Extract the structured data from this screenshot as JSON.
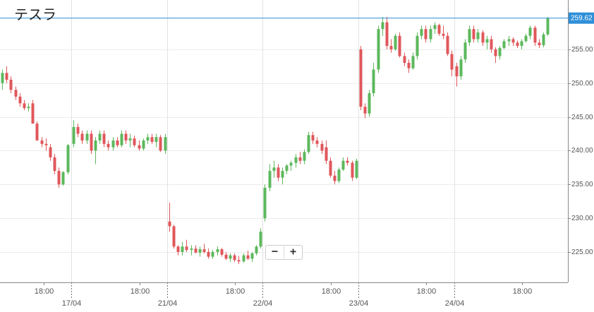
{
  "chart_data": {
    "type": "candlestick",
    "title": "テスラ",
    "x": [
      0.5,
      1.5,
      2.5,
      3.5,
      4.5,
      5.5,
      6.5,
      7.5,
      8.5,
      9.5,
      10.5,
      11.5,
      12.5,
      13.5,
      14.5,
      15.5,
      16.9,
      17.9,
      18.9,
      19.9,
      20.9,
      21.9,
      22.9,
      23.9,
      24.9,
      25.9,
      26.9,
      27.9,
      28.9,
      29.9,
      30.9,
      31.9,
      32.9,
      33.9,
      34.9,
      35.9,
      36.9,
      37.9,
      38.9,
      39.9,
      40.9,
      41.9,
      42.9,
      43.9,
      44.9,
      45.9,
      46.9,
      47.9,
      48.9,
      49.9,
      50.9,
      51.9,
      52.9,
      53.9,
      54.9,
      55.9,
      56.9,
      57.9,
      58.9,
      59.9,
      60.9,
      61.9,
      62.9,
      63.9,
      64.9,
      65.9,
      66.9,
      67.9,
      68.9,
      69.9,
      70.9,
      71.9,
      72.9,
      73.9,
      74.9,
      75.9,
      76.9,
      77.9,
      78.9,
      79.9,
      80.9,
      81.9,
      82.9,
      83.9,
      84.9,
      85.9,
      86.9,
      87.9,
      88.9,
      89.9,
      90.9,
      91.9,
      92.9,
      93.9,
      94.9,
      95.9,
      96.9,
      97.9,
      98.9,
      99.9,
      100.9,
      101.9,
      102.9,
      103.9,
      104.9,
      105.9,
      106.9,
      107.9,
      108.9,
      109.9,
      110.9,
      111.9,
      112.9,
      113.9,
      114.9,
      115.9,
      116.9,
      117.9,
      118.9,
      119.9,
      120.9,
      121.9,
      122.9,
      123.9,
      124.9,
      125.9
    ],
    "open": [
      250,
      251.5,
      250.5,
      249,
      248,
      247,
      246.3,
      247,
      244,
      241.5,
      241,
      240.5,
      239,
      237,
      235,
      236.8,
      241,
      243.5,
      242.5,
      241.5,
      242.5,
      240,
      241.5,
      242.5,
      241,
      240.5,
      241.5,
      240.8,
      242.5,
      241.5,
      241.8,
      240.8,
      240.3,
      241.5,
      242,
      241.3,
      242,
      240,
      229.5,
      228.8,
      225.8,
      225,
      225.8,
      225.3,
      225.5,
      224.9,
      225.4,
      225,
      224.3,
      225,
      225.4,
      224.6,
      224,
      224.5,
      223.8,
      223.6,
      224.5,
      224,
      224.8,
      225.8,
      230,
      234.5,
      237,
      237.5,
      236,
      237,
      237.8,
      238.2,
      239,
      238.5,
      239.8,
      242.3,
      241.5,
      241,
      240.5,
      238.5,
      236.3,
      235.5,
      237.2,
      238.5,
      238.2,
      236,
      255,
      246.5,
      245.5,
      248.5,
      252,
      258,
      259,
      255.5,
      255,
      257,
      254,
      253,
      252.2,
      254,
      257,
      258,
      256.5,
      258,
      258.6,
      257.3,
      257,
      254.3,
      252.5,
      251,
      253.5,
      256,
      258,
      256.5,
      257.5,
      256,
      256.5,
      255,
      254,
      255.2,
      256.2,
      256.5,
      256,
      255.5,
      256.2,
      257,
      258.2,
      256,
      255.6,
      257.2
    ],
    "high": [
      252,
      252.5,
      251,
      249.5,
      248.5,
      247.5,
      247,
      247.5,
      244.3,
      242,
      241.8,
      241,
      239.5,
      237.5,
      237,
      241,
      244.5,
      244,
      243,
      243,
      243,
      242,
      243,
      243,
      241.5,
      242,
      242,
      243,
      243,
      242.5,
      242.2,
      241.5,
      241.8,
      242.5,
      242.5,
      242.5,
      242.3,
      242.5,
      232.3,
      229,
      226,
      226.5,
      226.8,
      226,
      226,
      225.8,
      226.2,
      225.5,
      225.3,
      225.8,
      225.6,
      225,
      224.8,
      224.8,
      224.4,
      224.8,
      225.2,
      225,
      226,
      228.5,
      235,
      238,
      238.5,
      238,
      237.5,
      238,
      238.5,
      239.5,
      239.8,
      240.2,
      242.8,
      242.8,
      242,
      241.5,
      241.5,
      239,
      237,
      237.5,
      239,
      239,
      238.5,
      238.8,
      255.5,
      247,
      249,
      253,
      258.5,
      259.8,
      259.8,
      256.5,
      257.3,
      257.5,
      254.5,
      253.5,
      254.5,
      257.5,
      258.5,
      258.5,
      258.5,
      259,
      258.8,
      258.5,
      257.5,
      254.8,
      253,
      254,
      256.5,
      258.5,
      258.5,
      258,
      257.8,
      257,
      257,
      255.3,
      255.5,
      256.5,
      257,
      256.8,
      256.3,
      256.5,
      257.3,
      258.5,
      258.5,
      256.5,
      257.5,
      259.8
    ],
    "low": [
      249,
      250,
      248.5,
      247.5,
      246.5,
      246,
      245.8,
      244,
      241.5,
      240.5,
      240,
      238.5,
      236.5,
      234.5,
      234.8,
      236.5,
      240.5,
      242,
      241,
      241,
      239.5,
      238,
      241,
      240.5,
      240,
      240,
      240.5,
      240.5,
      241,
      240.5,
      240.5,
      240,
      240,
      241,
      241,
      240.5,
      239.8,
      239.5,
      228,
      225.5,
      224.5,
      224.5,
      225,
      224.5,
      224.8,
      224.3,
      224.8,
      224,
      224,
      224.5,
      224.3,
      223.8,
      223.5,
      223.5,
      223.2,
      223.4,
      223.8,
      223.5,
      224.5,
      225.5,
      229.5,
      234,
      236,
      235.5,
      235,
      236.5,
      237,
      237.5,
      238,
      238,
      239.5,
      241,
      240.5,
      239.5,
      238,
      236,
      235,
      235.2,
      237,
      237.8,
      235.5,
      235.8,
      246,
      244.8,
      245,
      248,
      251.5,
      257,
      255,
      254.5,
      254.8,
      253.8,
      252.5,
      251.5,
      252,
      253.5,
      256.5,
      256,
      256,
      257.3,
      257,
      256.5,
      254,
      251,
      249.5,
      250.5,
      253,
      255.5,
      256,
      256,
      255.5,
      255,
      254.5,
      253,
      253.5,
      255,
      255.5,
      255.5,
      255.2,
      255,
      256,
      256.5,
      255.5,
      255.2,
      255.3,
      257
    ],
    "close": [
      251.5,
      250.5,
      249,
      248,
      247,
      246.3,
      246.5,
      244,
      241.5,
      241,
      240.8,
      239,
      237,
      235,
      236.8,
      240.8,
      243.5,
      242.5,
      241.5,
      242.5,
      240,
      241.5,
      242.5,
      241,
      240.5,
      241.5,
      240.8,
      242.5,
      241.5,
      241.8,
      240.8,
      240.3,
      241.5,
      242,
      241.3,
      242,
      240,
      242,
      228.8,
      225.8,
      225,
      225.8,
      225.3,
      225.5,
      224.9,
      225.4,
      225,
      224.3,
      225,
      225.4,
      224.6,
      224,
      224.5,
      223.8,
      223.6,
      224.5,
      224,
      224.8,
      225.8,
      228,
      234.5,
      237,
      237.5,
      236,
      237,
      237.8,
      238.2,
      239,
      238.5,
      239.8,
      242.3,
      241.5,
      241,
      240,
      238.5,
      236.3,
      235.5,
      237.2,
      238.5,
      238.2,
      236,
      238.5,
      246.5,
      245.5,
      248.5,
      252,
      258,
      259,
      255.5,
      255,
      257,
      254,
      253,
      252.2,
      254,
      257,
      258,
      256.5,
      258,
      258.6,
      257.3,
      257,
      254.3,
      252,
      251,
      253.5,
      256,
      258,
      256.5,
      257.5,
      256,
      256.5,
      255,
      254,
      255.2,
      256.2,
      256.5,
      256,
      255.5,
      256.2,
      257,
      258.2,
      256,
      255.6,
      257.2,
      259.62
    ],
    "up_color": "#5cb85c",
    "down_color": "#e0575b",
    "xlim": [
      0,
      130.6
    ],
    "ylim": [
      220.5,
      262.3
    ],
    "yticks": [
      {
        "value": 225,
        "label": "225.00"
      },
      {
        "value": 230,
        "label": "230.00"
      },
      {
        "value": 235,
        "label": "235.00"
      },
      {
        "value": 240,
        "label": "240.00"
      },
      {
        "value": 245,
        "label": "245.00"
      },
      {
        "value": 250,
        "label": "250.00"
      },
      {
        "value": 255,
        "label": "255.00"
      }
    ],
    "xticks": [
      {
        "value": 10.05,
        "label": "18:00"
      },
      {
        "value": 32.05,
        "label": "18:00"
      },
      {
        "value": 54.05,
        "label": "18:00"
      },
      {
        "value": 76.05,
        "label": "18:00"
      },
      {
        "value": 98.05,
        "label": "18:00"
      },
      {
        "value": 120.05,
        "label": "18:00"
      }
    ],
    "date_ticks": [
      {
        "value": 16.4,
        "label": "17/04"
      },
      {
        "value": 38.4,
        "label": "21/04"
      },
      {
        "value": 60.4,
        "label": "22/04"
      },
      {
        "value": 82.4,
        "label": "23/04"
      },
      {
        "value": 104.4,
        "label": "24/04"
      }
    ],
    "last_price": 259.62,
    "last_price_color": "#2f8fd8",
    "grid": true
  },
  "zoom_controls": [
    "−",
    "+"
  ]
}
